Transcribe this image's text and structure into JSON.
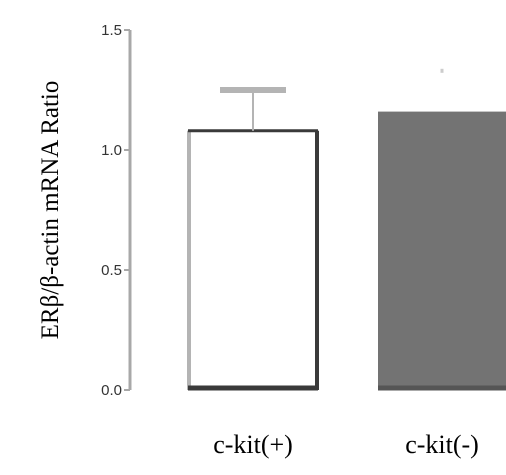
{
  "chart_data": {
    "type": "bar",
    "ylabel": "ERβ/β-actin mRNA Ratio",
    "xlabel": "",
    "categories": [
      "c-kit(+)",
      "c-kit(-)"
    ],
    "values": [
      1.08,
      1.16
    ],
    "error_upper": [
      1.25,
      1.33
    ],
    "ylim": [
      0,
      1.5
    ],
    "yticks": [
      {
        "value": 0,
        "label": "0.0"
      },
      {
        "value": 0.5,
        "label": "0.5"
      },
      {
        "value": 1.0,
        "label": "1.0"
      },
      {
        "value": 1.5,
        "label": "1.5"
      }
    ],
    "grid": false,
    "legend": "none",
    "bar_styles": [
      {
        "fill": "#ffffff",
        "stroke": "#3a3a3a",
        "left_stroke": "#b4b4b4",
        "error_color": "#b4b4b4"
      },
      {
        "fill": "#737373",
        "stroke": "#737373",
        "left_stroke": "#737373",
        "error_color": "#cccccc"
      }
    ],
    "axis_color": "#a8a8a8"
  }
}
